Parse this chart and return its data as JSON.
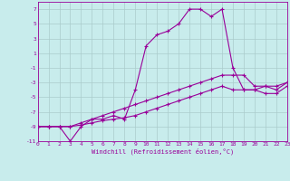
{
  "xlabel": "Windchill (Refroidissement éolien,°C)",
  "bg_color": "#c8ecec",
  "grid_color": "#aacccc",
  "line_color": "#990099",
  "xmin": 0,
  "xmax": 23,
  "ymin": -11,
  "ymax": 8,
  "yticks": [
    -11,
    -9,
    -7,
    -5,
    -3,
    -1,
    1,
    3,
    5,
    7
  ],
  "xticks": [
    0,
    1,
    2,
    3,
    4,
    5,
    6,
    7,
    8,
    9,
    10,
    11,
    12,
    13,
    14,
    15,
    16,
    17,
    18,
    19,
    20,
    21,
    22,
    23
  ],
  "curve1_x": [
    0,
    1,
    2,
    3,
    4,
    5,
    6,
    7,
    8,
    9,
    10,
    11,
    12,
    13,
    14,
    15,
    16,
    17,
    18,
    19,
    20,
    21,
    22,
    23
  ],
  "curve1_y": [
    -9,
    -9,
    -9,
    -11,
    -9,
    -8,
    -8,
    -7.5,
    -8,
    -4,
    2,
    3.5,
    4,
    5,
    7,
    7,
    6,
    7,
    -1,
    -4,
    -4,
    -3.5,
    -4,
    -3
  ],
  "curve2_x": [
    0,
    1,
    2,
    3,
    4,
    5,
    6,
    7,
    8,
    9,
    10,
    11,
    12,
    13,
    14,
    15,
    16,
    17,
    18,
    19,
    20,
    21,
    22,
    23
  ],
  "curve2_y": [
    -9,
    -9,
    -9,
    -9,
    -8.5,
    -8,
    -7.5,
    -7,
    -6.5,
    -6,
    -5.5,
    -5,
    -4.5,
    -4,
    -3.5,
    -3,
    -2.5,
    -2,
    -2,
    -2,
    -3.5,
    -3.5,
    -3.5,
    -3
  ],
  "curve3_x": [
    0,
    1,
    2,
    3,
    4,
    5,
    6,
    7,
    8,
    9,
    10,
    11,
    12,
    13,
    14,
    15,
    16,
    17,
    18,
    19,
    20,
    21,
    22,
    23
  ],
  "curve3_y": [
    -9,
    -9,
    -9,
    -9,
    -8.8,
    -8.5,
    -8.2,
    -8,
    -7.8,
    -7.5,
    -7,
    -6.5,
    -6,
    -5.5,
    -5,
    -4.5,
    -4,
    -3.5,
    -4,
    -4,
    -4,
    -4.5,
    -4.5,
    -3.5
  ]
}
